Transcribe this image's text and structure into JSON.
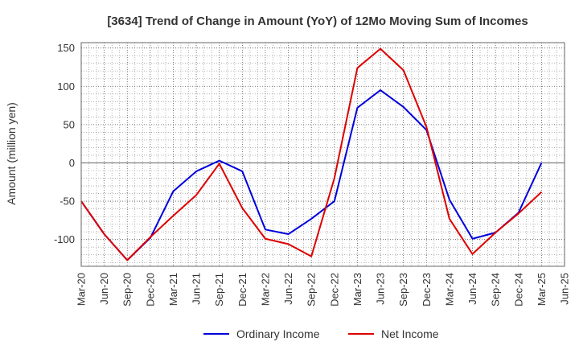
{
  "chart_data": {
    "type": "line",
    "title": "[3634]  Trend of Change in Amount (YoY) of 12Mo Moving Sum of Incomes",
    "ylabel": "Amount (million yen)",
    "xlabel": "",
    "ylim": [
      -135,
      157
    ],
    "yticks": [
      150,
      100,
      50,
      0,
      -50,
      -100
    ],
    "categories": [
      "Mar-20",
      "Jun-20",
      "Sep-20",
      "Dec-20",
      "Mar-21",
      "Jun-21",
      "Sep-21",
      "Dec-21",
      "Mar-22",
      "Jun-22",
      "Sep-22",
      "Dec-22",
      "Mar-23",
      "Jun-23",
      "Sep-23",
      "Dec-23",
      "Mar-24",
      "Jun-24",
      "Sep-24",
      "Dec-24",
      "Mar-25",
      "Jun-25"
    ],
    "series": [
      {
        "name": "Ordinary Income",
        "color": "#0000dd",
        "values": [
          -50,
          -93,
          -127,
          -98,
          -37,
          -11,
          3,
          -11,
          -87,
          -93,
          -73,
          -50,
          72,
          95,
          73,
          43,
          -48,
          -99,
          -91,
          -65,
          0,
          null
        ]
      },
      {
        "name": "Net Income",
        "color": "#dd0000",
        "values": [
          -50,
          -93,
          -127,
          -97,
          -69,
          -42,
          -1,
          -59,
          -99,
          -106,
          -122,
          -20,
          124,
          149,
          121,
          47,
          -73,
          -119,
          -91,
          -66,
          -38,
          null
        ]
      }
    ],
    "grid": true,
    "legend": "bottom-center"
  }
}
